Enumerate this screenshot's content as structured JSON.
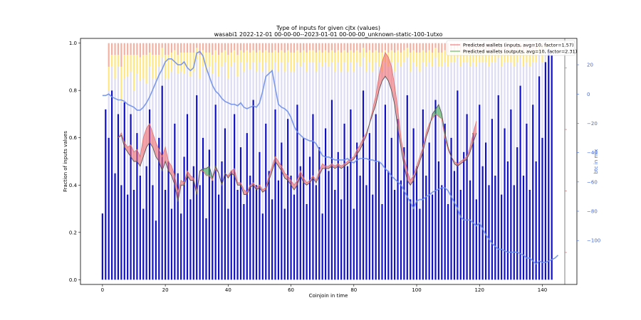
{
  "chart_data": {
    "type": "bar",
    "title": "Type of inputs for given cjtx (values)",
    "subtitle": "wasabi1 2022-12-01 00-00-00--2023-01-01 00-00-00_unknown-static-100-1utxo",
    "xlabel": "Coinjoin in time",
    "ylabel": "Fraction of inputs values",
    "y2label": "btc in mix",
    "xlim": [
      -7,
      151
    ],
    "ylim": [
      -0.02,
      1.02
    ],
    "y2lim": [
      -130,
      38
    ],
    "x_ticks": [
      "0",
      "20",
      "40",
      "60",
      "80",
      "100",
      "120",
      "140"
    ],
    "y_ticks": [
      "0.0",
      "0.2",
      "0.4",
      "0.6",
      "0.8",
      "1.0"
    ],
    "y2_ticks": [
      "20",
      "0",
      "−20",
      "−40",
      "−60",
      "−80",
      "−100"
    ],
    "y2_tick_values": [
      20,
      0,
      -20,
      -40,
      -60,
      -80,
      -100
    ],
    "x_tick_values": [
      0,
      20,
      40,
      60,
      80,
      100,
      120,
      140
    ],
    "y_tick_values": [
      0,
      0.2,
      0.4,
      0.6,
      0.8,
      1.0
    ],
    "stack_colors": [
      "#1010c8",
      "#dcdcf4",
      "#ffe680",
      "#f4b0a0"
    ],
    "legend": {
      "placement": "top-right",
      "entries": [
        {
          "label": "Predicted wallets (inputs, avg=10, factor=1.57)",
          "color": "#f08080"
        },
        {
          "label": "Predicted wallets (outputs, avg=10, factor=2.31)",
          "color": "#66bb66"
        }
      ]
    },
    "series": [
      {
        "name": "Predicted wallets (inputs, avg=10, factor=1.57)",
        "color": "#f08080",
        "x_start": 5,
        "values": [
          0.6,
          0.62,
          0.58,
          0.56,
          0.57,
          0.54,
          0.55,
          0.52,
          0.6,
          0.64,
          0.66,
          0.62,
          0.58,
          0.55,
          0.52,
          0.56,
          0.5,
          0.48,
          0.44,
          0.37,
          0.42,
          0.41,
          0.46,
          0.44,
          0.43,
          0.37,
          0.46,
          0.46,
          0.44,
          0.44,
          0.42,
          0.47,
          0.45,
          0.4,
          0.45,
          0.44,
          0.46,
          0.47,
          0.41,
          0.41,
          0.38,
          0.37,
          0.4,
          0.41,
          0.39,
          0.4,
          0.38,
          0.39,
          0.44,
          0.48,
          0.52,
          0.5,
          0.48,
          0.45,
          0.44,
          0.42,
          0.4,
          0.42,
          0.46,
          0.43,
          0.41,
          0.42,
          0.44,
          0.42,
          0.46,
          0.49,
          0.48,
          0.48,
          0.49,
          0.48,
          0.49,
          0.48,
          0.49,
          0.5,
          0.51,
          0.52,
          0.55,
          0.57,
          0.6,
          0.62,
          0.66,
          0.72,
          0.78,
          0.86,
          0.92,
          0.96,
          0.94,
          0.9,
          0.82,
          0.72,
          0.6,
          0.52,
          0.46,
          0.42,
          0.44,
          0.48,
          0.52,
          0.56,
          0.62,
          0.66,
          0.68,
          0.7,
          0.69,
          0.68,
          0.6,
          0.55,
          0.52,
          0.5,
          0.49,
          0.5,
          0.51,
          0.52,
          0.56,
          0.62,
          0.67
        ]
      },
      {
        "name": "Predicted wallets (outputs, avg=10, factor=2.31)",
        "color": "#66bb66",
        "x_start": 5,
        "values": [
          0.6,
          0.61,
          0.56,
          0.54,
          0.52,
          0.5,
          0.5,
          0.48,
          0.52,
          0.56,
          0.58,
          0.56,
          0.52,
          0.5,
          0.46,
          0.5,
          0.46,
          0.44,
          0.4,
          0.33,
          0.4,
          0.4,
          0.44,
          0.42,
          0.42,
          0.36,
          0.46,
          0.47,
          0.47,
          0.48,
          0.43,
          0.48,
          0.45,
          0.4,
          0.45,
          0.43,
          0.45,
          0.44,
          0.4,
          0.4,
          0.36,
          0.36,
          0.39,
          0.4,
          0.38,
          0.39,
          0.37,
          0.38,
          0.42,
          0.46,
          0.5,
          0.48,
          0.46,
          0.43,
          0.42,
          0.4,
          0.38,
          0.4,
          0.44,
          0.41,
          0.4,
          0.41,
          0.43,
          0.41,
          0.44,
          0.47,
          0.47,
          0.47,
          0.48,
          0.47,
          0.48,
          0.47,
          0.48,
          0.49,
          0.5,
          0.51,
          0.53,
          0.55,
          0.58,
          0.61,
          0.66,
          0.7,
          0.74,
          0.8,
          0.84,
          0.86,
          0.84,
          0.8,
          0.74,
          0.64,
          0.56,
          0.48,
          0.42,
          0.4,
          0.42,
          0.46,
          0.5,
          0.54,
          0.6,
          0.64,
          0.7,
          0.72,
          0.74,
          0.7,
          0.62,
          0.56,
          0.52,
          0.49,
          0.48,
          0.49,
          0.5,
          0.51,
          0.54,
          0.58,
          0.62
        ]
      },
      {
        "name": "btc in mix",
        "color": "#6f8fe8",
        "axis": "right",
        "x_start": 0,
        "values": [
          -1,
          -1,
          0,
          -2,
          -3,
          -4,
          -4,
          -5,
          -7,
          -8,
          -9,
          -11,
          -11,
          -9,
          -6,
          -2,
          3,
          8,
          13,
          17,
          22,
          24,
          24,
          22,
          20,
          20,
          22,
          18,
          16,
          18,
          28,
          29,
          26,
          18,
          12,
          6,
          2,
          0,
          -3,
          -5,
          -6,
          -7,
          -7,
          -8,
          -6,
          -9,
          -10,
          -9,
          -8,
          -9,
          -6,
          2,
          12,
          14,
          16,
          4,
          -7,
          -9,
          -10,
          -12,
          -16,
          -22,
          -26,
          -28,
          -30,
          -31,
          -32,
          -32,
          -34,
          -38,
          -42,
          -43,
          -43,
          -44,
          -45,
          -45,
          -45,
          -45,
          -44,
          -46,
          -47,
          -45,
          -44,
          -44,
          -44,
          -45,
          -45,
          -46,
          -46,
          -48,
          -51,
          -53,
          -56,
          -58,
          -60,
          -62,
          -66,
          -70,
          -74,
          -78,
          -73,
          -72,
          -72,
          -70,
          -69,
          -67,
          -66,
          -65,
          -64,
          -64,
          -66,
          -70,
          -74,
          -78,
          -84,
          -86,
          -86,
          -86,
          -88,
          -90,
          -88,
          -92,
          -96,
          -99,
          -102,
          -104,
          -106,
          -106,
          -107,
          -108,
          -108,
          -108,
          -108,
          -109,
          -110,
          -112,
          -112,
          -114,
          -116,
          -114,
          -115,
          -115,
          -114,
          -113,
          -112,
          -110
        ]
      }
    ],
    "bar_stacks": [
      [
        0.28,
        0.0,
        0.0,
        0.0
      ],
      [
        0.72,
        0.0,
        0.0,
        0.0
      ],
      [
        0.6,
        0.2,
        0.1,
        0.1
      ],
      [
        0.8,
        0.1,
        0.05,
        0.05
      ],
      [
        0.45,
        0.4,
        0.1,
        0.05
      ],
      [
        0.7,
        0.2,
        0.05,
        0.05
      ],
      [
        0.4,
        0.35,
        0.15,
        0.1
      ],
      [
        0.75,
        0.1,
        0.1,
        0.05
      ],
      [
        0.36,
        0.5,
        0.09,
        0.05
      ],
      [
        0.7,
        0.18,
        0.07,
        0.05
      ],
      [
        0.38,
        0.42,
        0.15,
        0.05
      ],
      [
        0.62,
        0.25,
        0.08,
        0.05
      ],
      [
        0.44,
        0.4,
        0.1,
        0.06
      ],
      [
        0.3,
        0.55,
        0.1,
        0.05
      ],
      [
        0.48,
        0.35,
        0.12,
        0.05
      ],
      [
        0.72,
        0.18,
        0.06,
        0.04
      ],
      [
        0.4,
        0.45,
        0.1,
        0.05
      ],
      [
        0.25,
        0.6,
        0.1,
        0.05
      ],
      [
        0.6,
        0.3,
        0.05,
        0.05
      ],
      [
        0.82,
        0.12,
        0.04,
        0.02
      ],
      [
        0.38,
        0.47,
        0.1,
        0.05
      ],
      [
        0.5,
        0.35,
        0.1,
        0.05
      ],
      [
        0.3,
        0.58,
        0.08,
        0.04
      ],
      [
        0.66,
        0.25,
        0.06,
        0.03
      ],
      [
        0.45,
        0.42,
        0.08,
        0.05
      ],
      [
        0.28,
        0.6,
        0.08,
        0.04
      ],
      [
        0.52,
        0.35,
        0.09,
        0.04
      ],
      [
        0.7,
        0.2,
        0.06,
        0.04
      ],
      [
        0.34,
        0.52,
        0.1,
        0.04
      ],
      [
        0.48,
        0.4,
        0.08,
        0.04
      ],
      [
        0.78,
        0.15,
        0.05,
        0.02
      ],
      [
        0.4,
        0.45,
        0.1,
        0.05
      ],
      [
        0.6,
        0.3,
        0.07,
        0.03
      ],
      [
        0.26,
        0.62,
        0.08,
        0.04
      ],
      [
        0.55,
        0.35,
        0.06,
        0.04
      ],
      [
        0.42,
        0.45,
        0.08,
        0.05
      ],
      [
        0.74,
        0.18,
        0.05,
        0.03
      ],
      [
        0.36,
        0.5,
        0.09,
        0.05
      ],
      [
        0.5,
        0.4,
        0.06,
        0.04
      ],
      [
        0.64,
        0.28,
        0.05,
        0.03
      ],
      [
        0.3,
        0.55,
        0.1,
        0.05
      ],
      [
        0.46,
        0.44,
        0.06,
        0.04
      ],
      [
        0.7,
        0.22,
        0.05,
        0.03
      ],
      [
        0.38,
        0.48,
        0.09,
        0.05
      ],
      [
        0.56,
        0.36,
        0.05,
        0.03
      ],
      [
        0.32,
        0.56,
        0.08,
        0.04
      ],
      [
        0.62,
        0.3,
        0.05,
        0.03
      ],
      [
        0.44,
        0.45,
        0.07,
        0.04
      ],
      [
        0.76,
        0.16,
        0.05,
        0.03
      ],
      [
        0.4,
        0.48,
        0.08,
        0.04
      ],
      [
        0.54,
        0.38,
        0.05,
        0.03
      ],
      [
        0.28,
        0.6,
        0.08,
        0.04
      ],
      [
        0.66,
        0.26,
        0.05,
        0.03
      ],
      [
        0.46,
        0.42,
        0.08,
        0.04
      ],
      [
        0.34,
        0.54,
        0.08,
        0.04
      ],
      [
        0.72,
        0.2,
        0.05,
        0.03
      ],
      [
        0.42,
        0.46,
        0.08,
        0.04
      ],
      [
        0.58,
        0.34,
        0.05,
        0.03
      ],
      [
        0.3,
        0.58,
        0.08,
        0.04
      ],
      [
        0.68,
        0.24,
        0.05,
        0.03
      ],
      [
        0.44,
        0.44,
        0.08,
        0.04
      ],
      [
        0.36,
        0.52,
        0.08,
        0.04
      ],
      [
        0.74,
        0.18,
        0.05,
        0.03
      ],
      [
        0.48,
        0.42,
        0.06,
        0.04
      ],
      [
        0.6,
        0.32,
        0.05,
        0.03
      ],
      [
        0.32,
        0.56,
        0.08,
        0.04
      ],
      [
        0.52,
        0.4,
        0.05,
        0.03
      ],
      [
        0.7,
        0.22,
        0.05,
        0.03
      ],
      [
        0.4,
        0.48,
        0.08,
        0.04
      ],
      [
        0.56,
        0.36,
        0.05,
        0.03
      ],
      [
        0.28,
        0.62,
        0.06,
        0.04
      ],
      [
        0.64,
        0.28,
        0.05,
        0.03
      ],
      [
        0.46,
        0.44,
        0.06,
        0.04
      ],
      [
        0.76,
        0.16,
        0.05,
        0.03
      ],
      [
        0.38,
        0.5,
        0.08,
        0.04
      ],
      [
        0.54,
        0.38,
        0.05,
        0.03
      ],
      [
        0.34,
        0.54,
        0.08,
        0.04
      ],
      [
        0.66,
        0.26,
        0.05,
        0.03
      ],
      [
        0.48,
        0.4,
        0.08,
        0.04
      ],
      [
        0.72,
        0.2,
        0.05,
        0.03
      ],
      [
        0.3,
        0.58,
        0.08,
        0.04
      ],
      [
        0.58,
        0.34,
        0.05,
        0.03
      ],
      [
        0.44,
        0.46,
        0.06,
        0.04
      ],
      [
        0.8,
        0.14,
        0.04,
        0.02
      ],
      [
        0.4,
        0.48,
        0.08,
        0.04
      ],
      [
        0.62,
        0.3,
        0.05,
        0.03
      ],
      [
        0.36,
        0.52,
        0.08,
        0.04
      ],
      [
        0.7,
        0.22,
        0.05,
        0.03
      ],
      [
        0.5,
        0.4,
        0.06,
        0.04
      ],
      [
        0.32,
        0.56,
        0.08,
        0.04
      ],
      [
        0.74,
        0.18,
        0.05,
        0.03
      ],
      [
        0.46,
        0.44,
        0.06,
        0.04
      ],
      [
        0.6,
        0.32,
        0.05,
        0.03
      ],
      [
        0.38,
        0.5,
        0.08,
        0.04
      ],
      [
        0.68,
        0.24,
        0.05,
        0.03
      ],
      [
        0.42,
        0.48,
        0.06,
        0.04
      ],
      [
        0.56,
        0.36,
        0.05,
        0.03
      ],
      [
        0.78,
        0.16,
        0.04,
        0.02
      ],
      [
        0.34,
        0.54,
        0.08,
        0.04
      ],
      [
        0.64,
        0.28,
        0.05,
        0.03
      ],
      [
        0.48,
        0.42,
        0.06,
        0.04
      ],
      [
        0.3,
        0.58,
        0.08,
        0.04
      ],
      [
        0.72,
        0.2,
        0.05,
        0.03
      ],
      [
        0.44,
        0.46,
        0.06,
        0.04
      ],
      [
        0.58,
        0.34,
        0.05,
        0.03
      ],
      [
        0.36,
        0.54,
        0.06,
        0.04
      ],
      [
        0.76,
        0.18,
        0.04,
        0.02
      ],
      [
        0.5,
        0.4,
        0.06,
        0.04
      ],
      [
        0.4,
        0.5,
        0.06,
        0.04
      ],
      [
        0.66,
        0.26,
        0.05,
        0.03
      ],
      [
        0.32,
        0.58,
        0.06,
        0.04
      ],
      [
        0.6,
        0.32,
        0.05,
        0.03
      ],
      [
        0.46,
        0.46,
        0.05,
        0.03
      ],
      [
        0.8,
        0.14,
        0.04,
        0.02
      ],
      [
        0.38,
        0.52,
        0.06,
        0.04
      ],
      [
        0.54,
        0.38,
        0.05,
        0.03
      ],
      [
        0.7,
        0.22,
        0.05,
        0.03
      ],
      [
        0.42,
        0.48,
        0.06,
        0.04
      ],
      [
        0.62,
        0.3,
        0.05,
        0.03
      ],
      [
        0.34,
        0.56,
        0.06,
        0.04
      ],
      [
        0.74,
        0.18,
        0.05,
        0.03
      ],
      [
        0.48,
        0.44,
        0.05,
        0.03
      ],
      [
        0.58,
        0.34,
        0.05,
        0.03
      ],
      [
        0.4,
        0.5,
        0.06,
        0.04
      ],
      [
        0.68,
        0.24,
        0.05,
        0.03
      ],
      [
        0.44,
        0.48,
        0.05,
        0.03
      ],
      [
        0.78,
        0.16,
        0.04,
        0.02
      ],
      [
        0.36,
        0.54,
        0.06,
        0.04
      ],
      [
        0.64,
        0.28,
        0.05,
        0.03
      ],
      [
        0.5,
        0.42,
        0.05,
        0.03
      ],
      [
        0.72,
        0.2,
        0.05,
        0.03
      ],
      [
        0.4,
        0.5,
        0.06,
        0.04
      ],
      [
        0.56,
        0.36,
        0.05,
        0.03
      ],
      [
        0.82,
        0.12,
        0.04,
        0.02
      ],
      [
        0.44,
        0.46,
        0.06,
        0.04
      ],
      [
        0.66,
        0.26,
        0.05,
        0.03
      ],
      [
        0.38,
        0.52,
        0.06,
        0.04
      ],
      [
        0.74,
        0.18,
        0.05,
        0.03
      ],
      [
        0.5,
        0.42,
        0.05,
        0.03
      ],
      [
        0.86,
        0.1,
        0.03,
        0.01
      ],
      [
        0.6,
        0.32,
        0.05,
        0.03
      ],
      [
        0.92,
        0.06,
        0.01,
        0.01
      ],
      [
        0.97,
        0.02,
        0.01,
        0.0
      ],
      [
        0.95,
        0.03,
        0.01,
        0.01
      ]
    ]
  }
}
